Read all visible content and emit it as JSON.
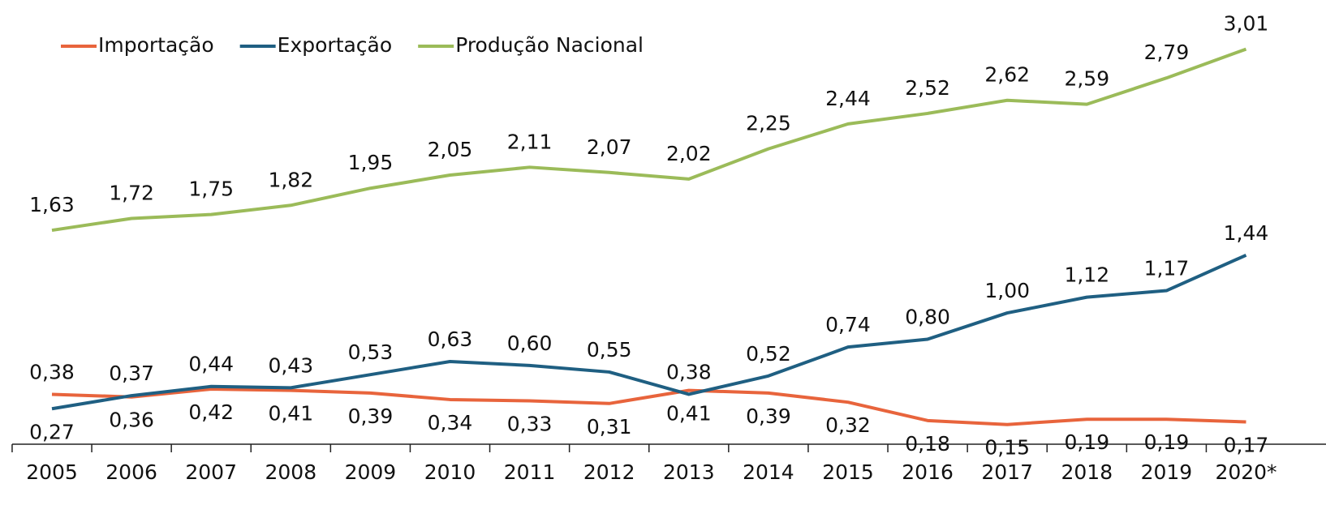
{
  "chart_data": {
    "type": "line",
    "categories": [
      "2005",
      "2006",
      "2007",
      "2008",
      "2009",
      "2010",
      "2011",
      "2012",
      "2013",
      "2014",
      "2015",
      "2016",
      "2017",
      "2018",
      "2019",
      "2020*"
    ],
    "ylim": [
      0,
      3.1
    ],
    "legend": "top-left",
    "series": [
      {
        "name": "Importação",
        "color": "#e8643c",
        "values": [
          0.38,
          0.36,
          0.42,
          0.41,
          0.39,
          0.34,
          0.33,
          0.31,
          0.41,
          0.39,
          0.32,
          0.18,
          0.15,
          0.19,
          0.19,
          0.17
        ],
        "value_labels": [
          "0,38",
          "0,36",
          "0,42",
          "0,41",
          "0,39",
          "0,34",
          "0,33",
          "0,31",
          "0,41",
          "0,39",
          "0,32",
          "0,18",
          "0,15",
          "0,19",
          "0,19",
          "0,17"
        ]
      },
      {
        "name": "Exportação",
        "color": "#1f5f82",
        "values": [
          0.27,
          0.37,
          0.44,
          0.43,
          0.53,
          0.63,
          0.6,
          0.55,
          0.38,
          0.52,
          0.74,
          0.8,
          1.0,
          1.12,
          1.17,
          1.44
        ],
        "value_labels": [
          "0,27",
          "0,37",
          "0,44",
          "0,43",
          "0,53",
          "0,63",
          "0,60",
          "0,55",
          "0,38",
          "0,52",
          "0,74",
          "0,80",
          "1,00",
          "1,12",
          "1,17",
          "1,44"
        ]
      },
      {
        "name": "Produção Nacional",
        "color": "#9bbb59",
        "values": [
          1.63,
          1.72,
          1.75,
          1.82,
          1.95,
          2.05,
          2.11,
          2.07,
          2.02,
          2.25,
          2.44,
          2.52,
          2.62,
          2.59,
          2.79,
          3.01
        ],
        "value_labels": [
          "1,63",
          "1,72",
          "1,75",
          "1,82",
          "1,95",
          "2,05",
          "2,11",
          "2,07",
          "2,02",
          "2,25",
          "2,44",
          "2,52",
          "2,62",
          "2,59",
          "2,79",
          "3,01"
        ]
      }
    ]
  }
}
